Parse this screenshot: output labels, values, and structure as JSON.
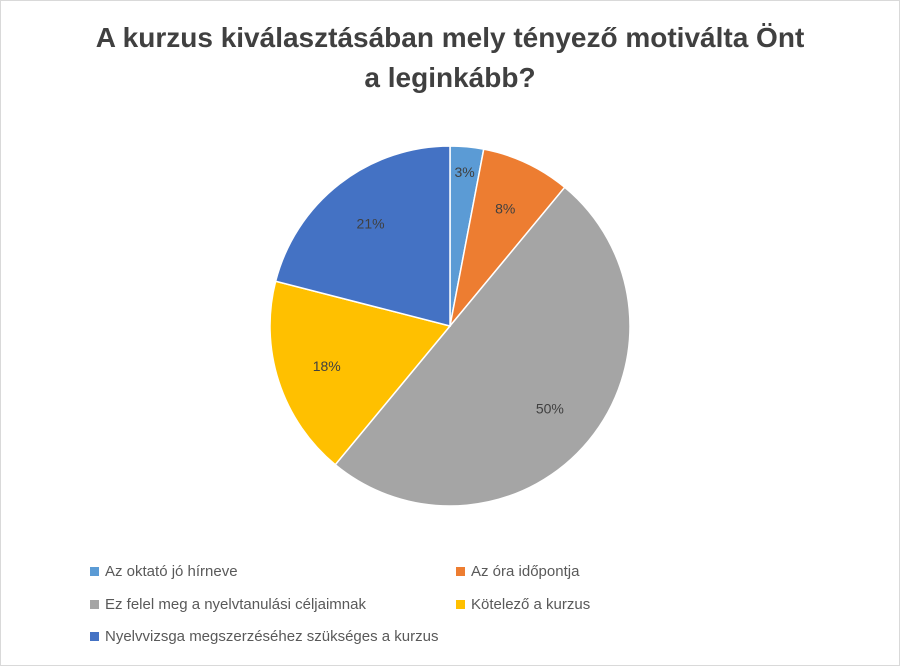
{
  "chart_data": {
    "type": "pie",
    "title_lines": [
      "A kurzus kiválasztásában mely tényező motiválta Önt",
      "a leginkább?"
    ],
    "slices": [
      {
        "label": "Az oktató jó hírneve",
        "value": 3,
        "data_label": "3%",
        "color": "#5b9bd5"
      },
      {
        "label": "Az óra időpontja",
        "value": 8,
        "data_label": "8%",
        "color": "#ed7d31"
      },
      {
        "label": "Ez felel meg a nyelvtanulási céljaimnak",
        "value": 50,
        "data_label": "50%",
        "color": "#a5a5a5"
      },
      {
        "label": "Kötelező a kurzus",
        "value": 18,
        "data_label": "18%",
        "color": "#ffc000"
      },
      {
        "label": "Nyelvvizsga megszerzéséhez szükséges a kurzus",
        "value": 21,
        "data_label": "21%",
        "color": "#4472c4"
      }
    ],
    "legend_position": "bottom"
  }
}
